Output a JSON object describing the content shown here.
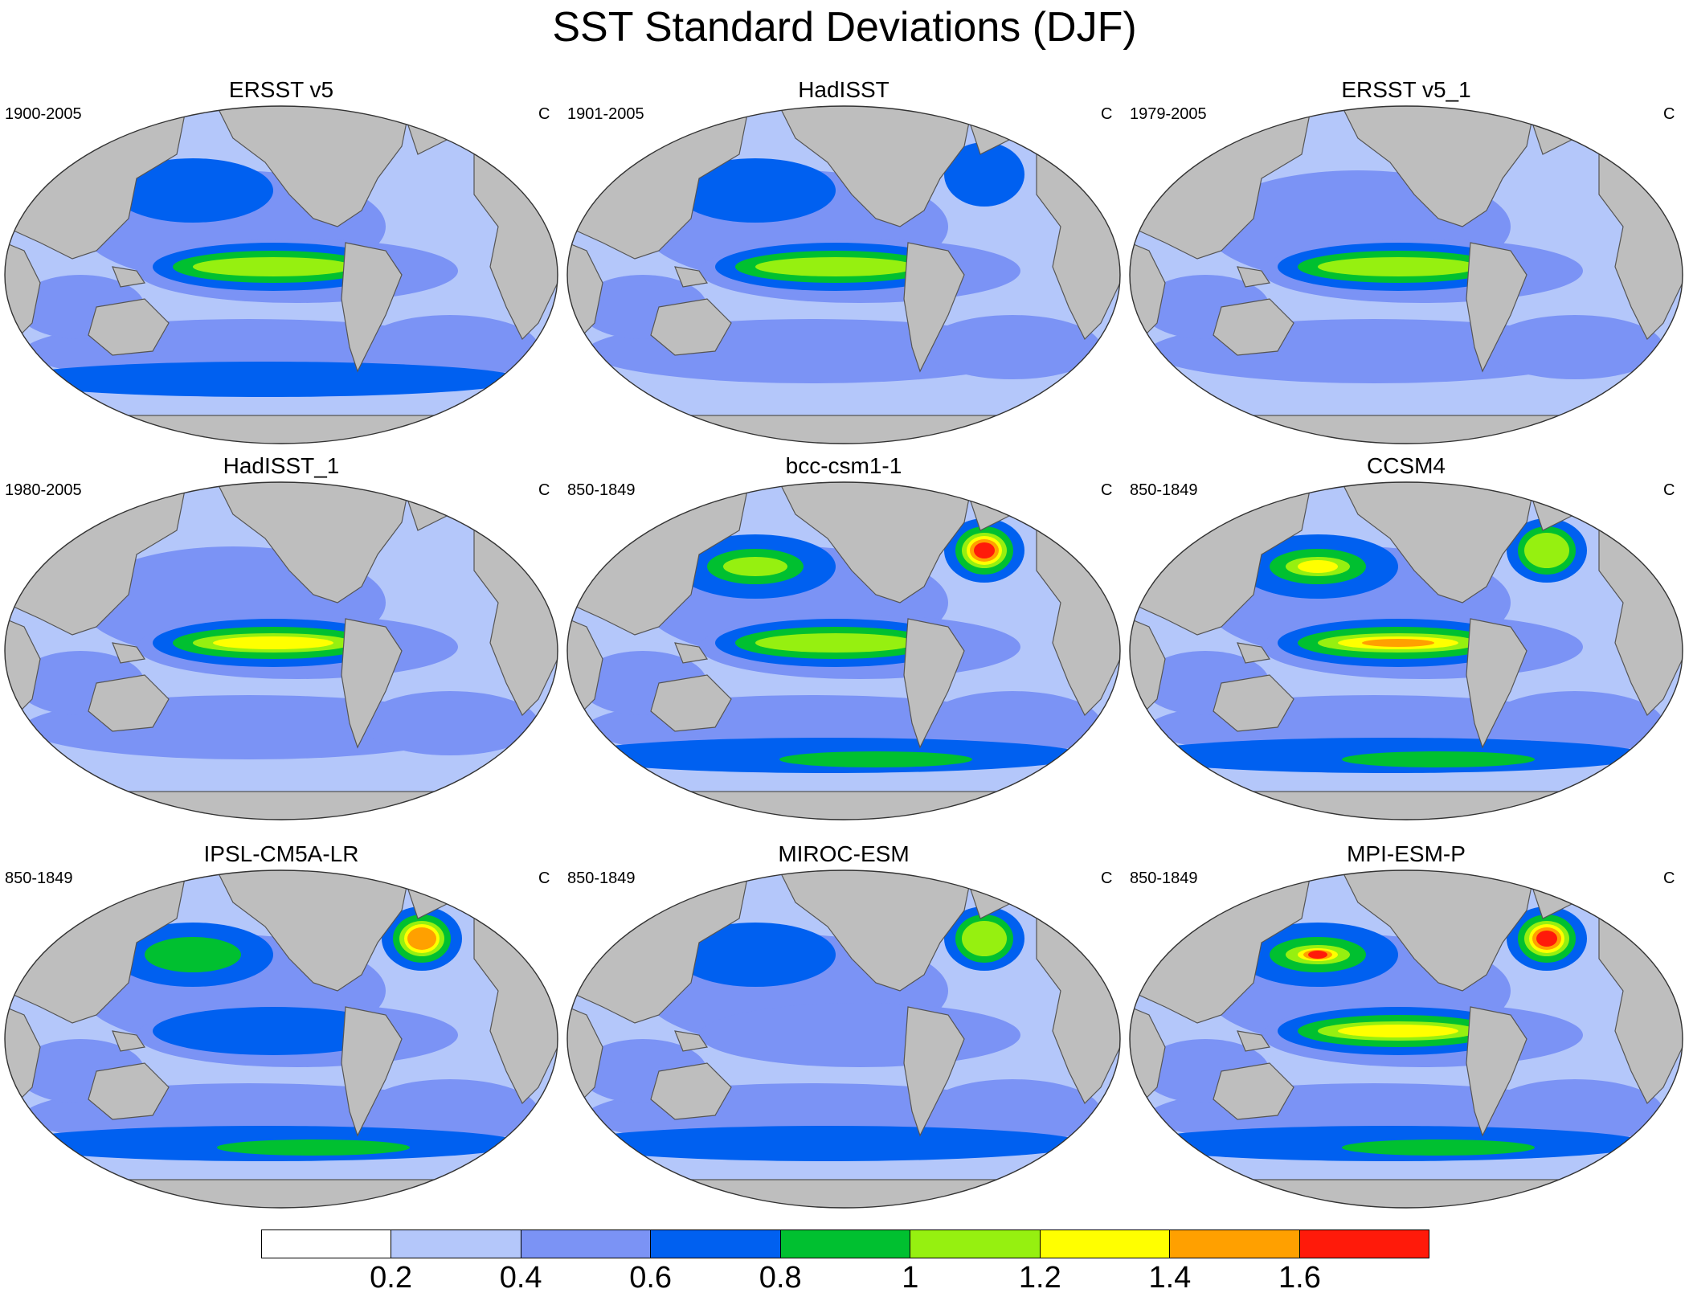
{
  "title": "SST Standard Deviations (DJF)",
  "units_label": "C",
  "panels": [
    {
      "name": "ERSST v5",
      "period": "1900-2005"
    },
    {
      "name": "HadISST",
      "period": "1901-2005"
    },
    {
      "name": "ERSST v5_1",
      "period": "1979-2005"
    },
    {
      "name": "HadISST_1",
      "period": "1980-2005"
    },
    {
      "name": "bcc-csm1-1",
      "period": "850-1849"
    },
    {
      "name": "CCSM4",
      "period": "850-1849"
    },
    {
      "name": "IPSL-CM5A-LR",
      "period": "850-1849"
    },
    {
      "name": "MIROC-ESM",
      "period": "850-1849"
    },
    {
      "name": "MPI-ESM-P",
      "period": "850-1849"
    }
  ],
  "colorbar": {
    "colors": [
      "#ffffff",
      "#b4c7fa",
      "#7b93f5",
      "#0060f0",
      "#00c030",
      "#96f010",
      "#ffff00",
      "#ffa000",
      "#ff1a0a"
    ],
    "labels": [
      "0.2",
      "0.4",
      "0.6",
      "0.8",
      "1",
      "1.2",
      "1.4",
      "1.6"
    ]
  },
  "colors": {
    "land": "#bebebe",
    "coast": "#555555"
  }
}
